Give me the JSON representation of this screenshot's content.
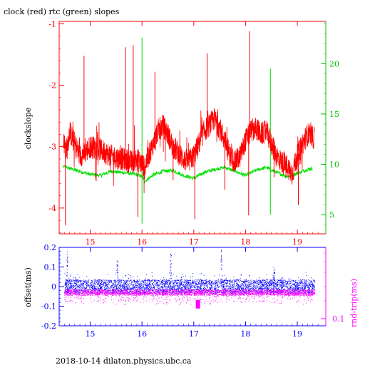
{
  "title": "clock (red) rtc (green) slopes",
  "footer": "2018-10-14  dilaton.physics.ubc.ca",
  "chart_data": [
    {
      "type": "line",
      "ylabel": "clockslope",
      "ylabel_right": "",
      "xlim": [
        14.4,
        19.55
      ],
      "ylim": [
        -4.42,
        -0.96
      ],
      "ylim_right": [
        3.1,
        24.2
      ],
      "x_ticks": [
        "15",
        "16",
        "17",
        "18",
        "19"
      ],
      "y_ticks": [
        "-1",
        "-2",
        "-3",
        "-4"
      ],
      "y_right_ticks": [
        "20",
        "15",
        "10",
        "5"
      ],
      "colors": {
        "clock": "#ff0000",
        "rtc": "#00e000",
        "frame": "#ff0000",
        "axis_right": "#00c000",
        "axis_left": "#ff0000"
      },
      "series": [
        {
          "axis": "left",
          "color": "#ff0000",
          "x": [
            14.48,
            14.55,
            14.6,
            14.7,
            14.8,
            14.9,
            15.0,
            15.1,
            15.2,
            15.3,
            15.4,
            15.5,
            15.6,
            15.7,
            15.8,
            15.9,
            16.0,
            16.05,
            16.1,
            16.2,
            16.3,
            16.4,
            16.5,
            16.6,
            16.7,
            16.8,
            16.9,
            17.0,
            17.1,
            17.2,
            17.3,
            17.4,
            17.5,
            17.6,
            17.7,
            17.8,
            17.9,
            18.0,
            18.1,
            18.2,
            18.3,
            18.4,
            18.5,
            18.6,
            18.7,
            18.8,
            18.9,
            19.0,
            19.1,
            19.2,
            19.3
          ],
          "y": [
            -2.95,
            -3.05,
            -2.75,
            -2.95,
            -3.15,
            -3.1,
            -3.0,
            -3.02,
            -3.05,
            -3.1,
            -3.15,
            -3.18,
            -3.2,
            -3.22,
            -3.25,
            -3.2,
            -3.28,
            -3.35,
            -3.2,
            -3.0,
            -2.75,
            -2.65,
            -2.8,
            -3.0,
            -3.1,
            -3.2,
            -3.25,
            -3.15,
            -2.95,
            -2.75,
            -2.65,
            -2.55,
            -2.7,
            -2.9,
            -3.15,
            -3.25,
            -3.15,
            -2.9,
            -2.75,
            -2.7,
            -2.8,
            -2.75,
            -2.95,
            -3.15,
            -3.25,
            -3.3,
            -3.45,
            -3.15,
            -2.95,
            -2.8,
            -2.85
          ]
        },
        {
          "axis": "right",
          "color": "#00e000",
          "x": [
            14.48,
            14.6,
            14.8,
            15.0,
            15.2,
            15.4,
            15.6,
            15.8,
            16.0,
            16.05,
            16.2,
            16.4,
            16.6,
            16.8,
            17.0,
            17.2,
            17.4,
            17.6,
            17.8,
            18.0,
            18.2,
            18.4,
            18.6,
            18.8,
            19.0,
            19.2,
            19.3
          ],
          "y": [
            9.8,
            9.6,
            9.3,
            9.0,
            8.9,
            9.3,
            9.2,
            9.1,
            8.8,
            8.3,
            8.9,
            9.3,
            9.4,
            8.9,
            8.6,
            9.2,
            9.5,
            9.7,
            9.3,
            8.9,
            9.4,
            9.7,
            9.2,
            8.8,
            9.1,
            9.5,
            9.6
          ]
        }
      ],
      "spikes_clock": [
        {
          "x": 14.52,
          "y": -4.28
        },
        {
          "x": 14.88,
          "y": -1.52
        },
        {
          "x": 15.68,
          "y": -1.38
        },
        {
          "x": 15.83,
          "y": -1.35
        },
        {
          "x": 16.25,
          "y": -1.78
        },
        {
          "x": 15.92,
          "y": -4.15
        },
        {
          "x": 16.6,
          "y": -3.55
        },
        {
          "x": 17.02,
          "y": -4.18
        },
        {
          "x": 17.26,
          "y": -1.48
        },
        {
          "x": 17.6,
          "y": -3.7
        },
        {
          "x": 18.08,
          "y": -1.12
        },
        {
          "x": 18.06,
          "y": -4.12
        },
        {
          "x": 18.55,
          "y": -3.5
        },
        {
          "x": 19.02,
          "y": -3.95
        }
      ],
      "spikes_rtc": [
        {
          "x": 16.0,
          "y": 22.6
        },
        {
          "x": 16.0,
          "y": 4.1
        },
        {
          "x": 18.48,
          "y": 19.5
        },
        {
          "x": 18.48,
          "y": 5.0
        }
      ]
    },
    {
      "type": "scatter",
      "ylabel": "offset(ms)",
      "ylabel_right": "rnd-trip(ms)",
      "xlim": [
        14.4,
        19.55
      ],
      "ylim": [
        -0.2,
        0.2
      ],
      "x_ticks": [
        "15",
        "16",
        "17",
        "18",
        "19"
      ],
      "y_ticks": [
        "0.2",
        "0.1",
        "0",
        "-0.1",
        "-0.2"
      ],
      "y_right_ticks": [
        "0.1"
      ],
      "colors": {
        "offset": "#0000ff",
        "rndtrip": "#ff00ff",
        "axis_right": "#ff00ff",
        "axis_left": "#0000ff"
      },
      "offset_band": {
        "center": 0.0,
        "halfwidth": 0.035,
        "x_start": 14.5,
        "x_end": 19.33
      },
      "rndtrip_band": {
        "center": -0.03,
        "halfwidth": 0.015,
        "x_start": 14.5,
        "x_end": 19.33
      },
      "offset_spikes": [
        {
          "x": 14.55,
          "y": 0.18
        },
        {
          "x": 15.52,
          "y": 0.15
        },
        {
          "x": 16.55,
          "y": 0.17
        },
        {
          "x": 17.53,
          "y": 0.19
        },
        {
          "x": 18.55,
          "y": 0.1
        }
      ],
      "rndtrip_cluster": {
        "x": 17.08,
        "y": -0.09
      }
    }
  ]
}
